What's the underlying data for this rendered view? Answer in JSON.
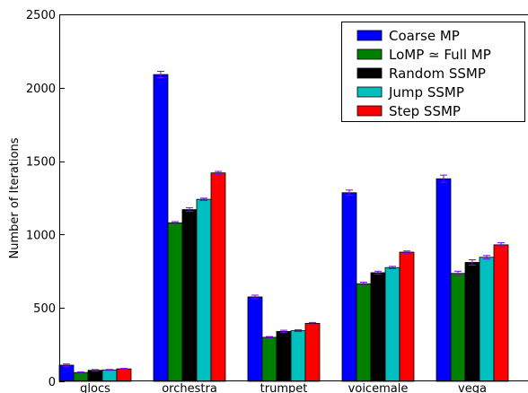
{
  "chart_data": {
    "type": "bar",
    "title": "",
    "xlabel": "",
    "ylabel": "Number of Iterations",
    "ylim": [
      0,
      2500
    ],
    "yticks": [
      0,
      500,
      1000,
      1500,
      2000,
      2500
    ],
    "grid": false,
    "error_bars": true,
    "legend_position": "top-right",
    "categories": [
      "glocs",
      "orchestra",
      "trumpet",
      "voicemale",
      "vega"
    ],
    "series": [
      {
        "name": "Coarse MP",
        "color": "#0000ff",
        "values": [
          110,
          2090,
          575,
          1285,
          1380
        ],
        "errors": [
          8,
          22,
          12,
          18,
          25
        ]
      },
      {
        "name": "LoMP ≃ Full MP",
        "color": "#008000",
        "values": [
          60,
          1080,
          300,
          665,
          735
        ],
        "errors": [
          4,
          8,
          5,
          10,
          15
        ]
      },
      {
        "name": "Random SSMP",
        "color": "#000000",
        "values": [
          75,
          1170,
          340,
          740,
          810
        ],
        "errors": [
          5,
          12,
          8,
          10,
          18
        ]
      },
      {
        "name": "Jump SSMP",
        "color": "#00bfbf",
        "values": [
          78,
          1240,
          345,
          775,
          845
        ],
        "errors": [
          3,
          8,
          6,
          8,
          12
        ]
      },
      {
        "name": "Step SSMP",
        "color": "#ff0000",
        "values": [
          85,
          1420,
          395,
          880,
          930
        ],
        "errors": [
          3,
          10,
          6,
          8,
          14
        ]
      }
    ]
  }
}
